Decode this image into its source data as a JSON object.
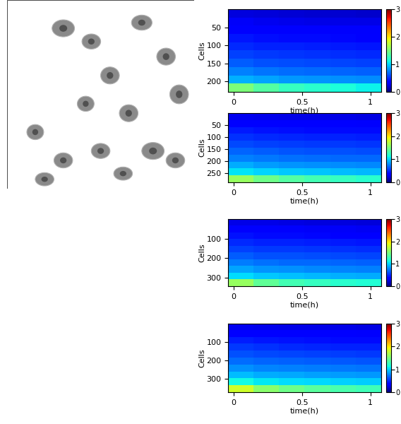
{
  "chart_data": [
    {
      "type": "heatmap",
      "xlabel": "time(h)",
      "ylabel": "Cells",
      "xlim": [
        -0.04,
        1.08
      ],
      "xticks": [
        0,
        0.5,
        1
      ],
      "ylim": [
        230,
        0
      ],
      "yticks": [
        50,
        100,
        150,
        200
      ],
      "colorbar_range": [
        0,
        3
      ],
      "colorbar_ticks": [
        0,
        1,
        2,
        3
      ],
      "cells": [
        [
          0.25,
          0.24,
          0.23,
          0.22,
          0.22,
          0.21
        ],
        [
          0.32,
          0.3,
          0.29,
          0.28,
          0.27,
          0.27
        ],
        [
          0.38,
          0.36,
          0.35,
          0.34,
          0.33,
          0.33
        ],
        [
          0.44,
          0.42,
          0.41,
          0.4,
          0.39,
          0.38
        ],
        [
          0.5,
          0.48,
          0.47,
          0.46,
          0.45,
          0.44
        ],
        [
          0.57,
          0.55,
          0.53,
          0.52,
          0.51,
          0.5
        ],
        [
          0.65,
          0.62,
          0.6,
          0.59,
          0.58,
          0.57
        ],
        [
          0.75,
          0.72,
          0.7,
          0.68,
          0.67,
          0.66
        ],
        [
          0.9,
          0.86,
          0.83,
          0.81,
          0.8,
          0.79
        ],
        [
          1.5,
          1.35,
          1.25,
          1.2,
          1.15,
          1.1
        ]
      ]
    },
    {
      "type": "heatmap",
      "xlabel": "time(h)",
      "ylabel": "Cells",
      "xlim": [
        -0.04,
        1.08
      ],
      "xticks": [
        0,
        0.5,
        1
      ],
      "ylim": [
        290,
        0
      ],
      "yticks": [
        50,
        100,
        150,
        200,
        250
      ],
      "colorbar_range": [
        0,
        3
      ],
      "colorbar_ticks": [
        0,
        1,
        2,
        3
      ],
      "cells": [
        [
          0.3,
          0.29,
          0.28,
          0.27,
          0.27,
          0.26
        ],
        [
          0.38,
          0.36,
          0.35,
          0.34,
          0.34,
          0.33
        ],
        [
          0.45,
          0.43,
          0.42,
          0.41,
          0.4,
          0.4
        ],
        [
          0.52,
          0.5,
          0.49,
          0.48,
          0.47,
          0.46
        ],
        [
          0.59,
          0.57,
          0.56,
          0.55,
          0.54,
          0.53
        ],
        [
          0.67,
          0.65,
          0.63,
          0.62,
          0.61,
          0.6
        ],
        [
          0.76,
          0.73,
          0.71,
          0.7,
          0.69,
          0.68
        ],
        [
          0.88,
          0.84,
          0.82,
          0.8,
          0.79,
          0.78
        ],
        [
          1.05,
          1.0,
          0.97,
          0.95,
          0.93,
          0.92
        ],
        [
          1.6,
          1.45,
          1.35,
          1.3,
          1.25,
          1.2
        ]
      ]
    },
    {
      "type": "heatmap",
      "xlabel": "time(h)",
      "ylabel": "Cells",
      "xlim": [
        -0.04,
        1.08
      ],
      "xticks": [
        0,
        0.5,
        1
      ],
      "ylim": [
        345,
        0
      ],
      "yticks": [
        100,
        200,
        300
      ],
      "colorbar_range": [
        0,
        3
      ],
      "colorbar_ticks": [
        0,
        1,
        2,
        3
      ],
      "cells": [
        [
          0.28,
          0.27,
          0.26,
          0.25,
          0.25,
          0.24
        ],
        [
          0.36,
          0.34,
          0.33,
          0.32,
          0.32,
          0.31
        ],
        [
          0.43,
          0.41,
          0.4,
          0.39,
          0.38,
          0.38
        ],
        [
          0.5,
          0.48,
          0.47,
          0.46,
          0.45,
          0.44
        ],
        [
          0.57,
          0.55,
          0.54,
          0.53,
          0.52,
          0.51
        ],
        [
          0.65,
          0.62,
          0.61,
          0.6,
          0.59,
          0.58
        ],
        [
          0.74,
          0.71,
          0.69,
          0.68,
          0.67,
          0.66
        ],
        [
          0.86,
          0.82,
          0.8,
          0.78,
          0.77,
          0.76
        ],
        [
          1.02,
          0.97,
          0.94,
          0.92,
          0.9,
          0.89
        ],
        [
          1.6,
          1.4,
          1.3,
          1.25,
          1.2,
          1.18
        ]
      ]
    },
    {
      "type": "heatmap",
      "xlabel": "time(h)",
      "ylabel": "Cells",
      "xlim": [
        -0.04,
        1.08
      ],
      "xticks": [
        0,
        0.5,
        1
      ],
      "ylim": [
        375,
        0
      ],
      "yticks": [
        100,
        200,
        300
      ],
      "colorbar_range": [
        0,
        3
      ],
      "colorbar_ticks": [
        0,
        1,
        2,
        3
      ],
      "cells": [
        [
          0.3,
          0.29,
          0.28,
          0.27,
          0.27,
          0.26
        ],
        [
          0.38,
          0.36,
          0.35,
          0.34,
          0.34,
          0.33
        ],
        [
          0.46,
          0.44,
          0.43,
          0.42,
          0.41,
          0.41
        ],
        [
          0.54,
          0.52,
          0.5,
          0.49,
          0.48,
          0.48
        ],
        [
          0.62,
          0.59,
          0.58,
          0.57,
          0.56,
          0.55
        ],
        [
          0.7,
          0.67,
          0.66,
          0.65,
          0.64,
          0.63
        ],
        [
          0.8,
          0.77,
          0.75,
          0.74,
          0.73,
          0.72
        ],
        [
          0.93,
          0.89,
          0.87,
          0.85,
          0.84,
          0.83
        ],
        [
          1.12,
          1.06,
          1.03,
          1.01,
          0.99,
          0.98
        ],
        [
          1.8,
          1.55,
          1.45,
          1.38,
          1.32,
          1.28
        ]
      ]
    }
  ]
}
